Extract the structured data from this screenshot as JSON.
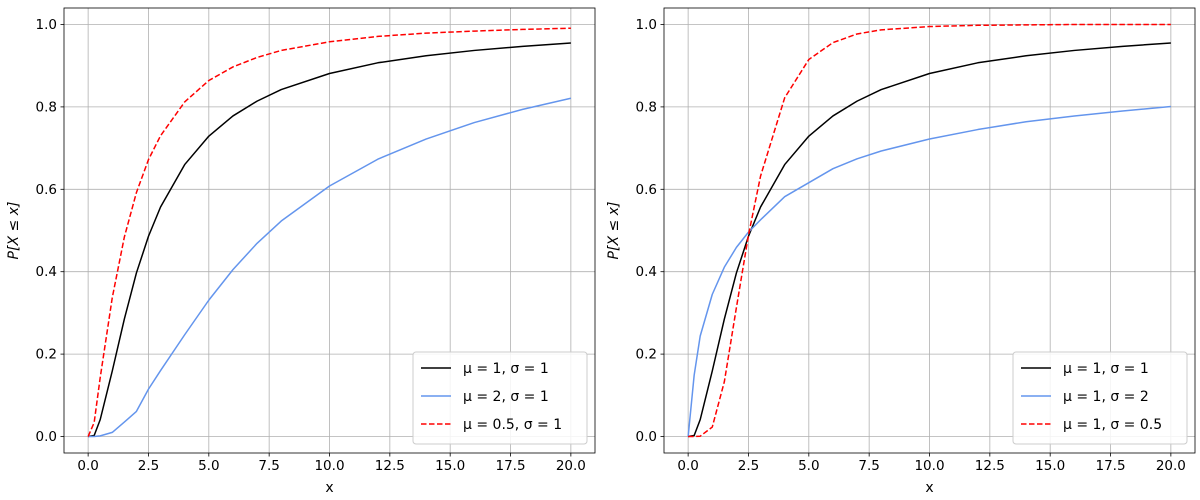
{
  "chart_data": [
    {
      "type": "line",
      "title": "",
      "xlabel": "x",
      "ylabel": "P[X ≤ x]",
      "xlim": [
        -1,
        21
      ],
      "ylim": [
        -0.04,
        1.04
      ],
      "xticks": [
        0.0,
        2.5,
        5.0,
        7.5,
        10.0,
        12.5,
        15.0,
        17.5,
        20.0
      ],
      "xtick_labels": [
        "0.0",
        "2.5",
        "5.0",
        "7.5",
        "10.0",
        "12.5",
        "15.0",
        "17.5",
        "20.0"
      ],
      "yticks": [
        0.0,
        0.2,
        0.4,
        0.6,
        0.8,
        1.0
      ],
      "ytick_labels": [
        "0.0",
        "0.2",
        "0.4",
        "0.6",
        "0.8",
        "1.0"
      ],
      "grid": true,
      "legend_position": "bottom-right",
      "x": [
        0,
        0.25,
        0.5,
        1,
        1.5,
        2,
        2.5,
        3,
        4,
        5,
        6,
        7,
        8,
        10,
        12,
        14,
        16,
        18,
        20
      ],
      "series": [
        {
          "name": "μ = 1,  σ = 1",
          "color": "#000000",
          "style": "solid",
          "values": [
            0,
            0.0025,
            0.041,
            0.159,
            0.285,
            0.397,
            0.486,
            0.557,
            0.66,
            0.729,
            0.778,
            0.814,
            0.842,
            0.881,
            0.907,
            0.924,
            0.937,
            0.947,
            0.955
          ]
        },
        {
          "name": "μ = 2,  σ = 1",
          "color": "#6495ed",
          "style": "solid",
          "values": [
            0,
            0.0,
            0.0015,
            0.01,
            0.035,
            0.061,
            0.115,
            0.16,
            0.247,
            0.331,
            0.405,
            0.469,
            0.523,
            0.608,
            0.673,
            0.722,
            0.762,
            0.794,
            0.821
          ]
        },
        {
          "name": "μ = 0.5,  σ = 1",
          "color": "#ff0000",
          "style": "dashed",
          "values": [
            0,
            0.034,
            0.143,
            0.337,
            0.484,
            0.592,
            0.672,
            0.73,
            0.812,
            0.864,
            0.897,
            0.92,
            0.937,
            0.958,
            0.971,
            0.979,
            0.984,
            0.988,
            0.991
          ]
        }
      ]
    },
    {
      "type": "line",
      "title": "",
      "xlabel": "x",
      "ylabel": "P[X ≤ x]",
      "xlim": [
        -1,
        21
      ],
      "ylim": [
        -0.04,
        1.04
      ],
      "xticks": [
        0.0,
        2.5,
        5.0,
        7.5,
        10.0,
        12.5,
        15.0,
        17.5,
        20.0
      ],
      "xtick_labels": [
        "0.0",
        "2.5",
        "5.0",
        "7.5",
        "10.0",
        "12.5",
        "15.0",
        "17.5",
        "20.0"
      ],
      "yticks": [
        0.0,
        0.2,
        0.4,
        0.6,
        0.8,
        1.0
      ],
      "ytick_labels": [
        "0.0",
        "0.2",
        "0.4",
        "0.6",
        "0.8",
        "1.0"
      ],
      "grid": true,
      "legend_position": "bottom-right",
      "x": [
        0,
        0.25,
        0.5,
        1,
        1.5,
        2,
        2.5,
        3,
        4,
        5,
        6,
        7,
        8,
        10,
        12,
        14,
        16,
        18,
        20
      ],
      "series": [
        {
          "name": "μ = 1,  σ = 1",
          "color": "#000000",
          "style": "solid",
          "values": [
            0,
            0.0025,
            0.041,
            0.159,
            0.285,
            0.397,
            0.486,
            0.557,
            0.66,
            0.729,
            0.778,
            0.814,
            0.842,
            0.881,
            0.907,
            0.924,
            0.937,
            0.947,
            0.955
          ]
        },
        {
          "name": "μ = 1,  σ = 2",
          "color": "#6495ed",
          "style": "solid",
          "values": [
            0,
            0.149,
            0.244,
            0.345,
            0.411,
            0.459,
            0.496,
            0.526,
            0.582,
            0.616,
            0.65,
            0.674,
            0.693,
            0.722,
            0.745,
            0.764,
            0.778,
            0.79,
            0.801
          ]
        },
        {
          "name": "μ = 1,  σ = 0.5",
          "color": "#ff0000",
          "style": "dashed",
          "values": [
            0,
            0.0,
            0.0008,
            0.023,
            0.133,
            0.313,
            0.489,
            0.632,
            0.822,
            0.915,
            0.956,
            0.977,
            0.987,
            0.995,
            0.998,
            0.999,
            1.0,
            1.0,
            1.0
          ]
        }
      ]
    }
  ]
}
